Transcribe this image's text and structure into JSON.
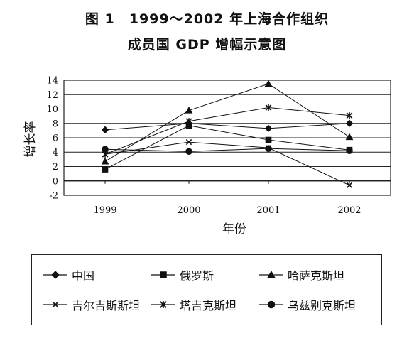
{
  "title_line1": "图 1　1999～2002 年上海合作组织",
  "title_line2": "成员国 GDP 增幅示意图",
  "chart_data": {
    "type": "line",
    "title": "图 1　1999～2002 年上海合作组织 成员国 GDP 增幅示意图",
    "xlabel": "年份",
    "ylabel": "增长率",
    "categories": [
      "1999",
      "2000",
      "2001",
      "2002"
    ],
    "ylim": [
      -2,
      14
    ],
    "yticks": [
      "-2",
      "0",
      "2",
      "4",
      "6",
      "8",
      "10",
      "12",
      "14"
    ],
    "grid": "horizontal",
    "legend_position": "bottom",
    "series": [
      {
        "name": "中国",
        "marker": "diamond",
        "values": [
          7.1,
          8.0,
          7.3,
          8.0
        ]
      },
      {
        "name": "俄罗斯",
        "marker": "square",
        "values": [
          1.6,
          7.7,
          5.7,
          4.3
        ]
      },
      {
        "name": "哈萨克斯坦",
        "marker": "triangle",
        "values": [
          2.7,
          9.8,
          13.5,
          6.1
        ]
      },
      {
        "name": "吉尔吉斯斯坦",
        "marker": "x",
        "values": [
          3.7,
          5.4,
          4.6,
          -0.6
        ]
      },
      {
        "name": "塔吉克斯坦",
        "marker": "star",
        "values": [
          3.7,
          8.3,
          10.2,
          9.1
        ]
      },
      {
        "name": "乌兹别克斯坦",
        "marker": "circle",
        "values": [
          4.4,
          4.1,
          4.5,
          4.2
        ]
      }
    ]
  }
}
